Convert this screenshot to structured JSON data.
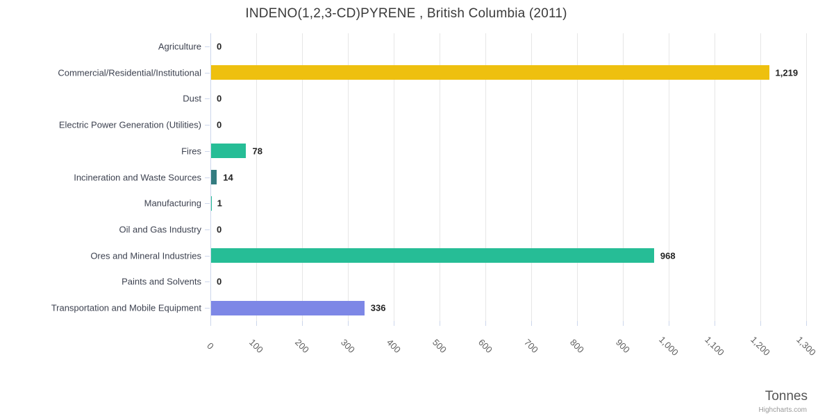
{
  "chart": {
    "title": "INDENO(1,2,3-CD)PYRENE , British Columbia (2011)",
    "axis_title": "Tonnes",
    "credit": "Highcharts.com"
  },
  "chart_data": {
    "type": "bar",
    "orientation": "horizontal",
    "title": "INDENO(1,2,3-CD)PYRENE , British Columbia (2011)",
    "xlabel": "Tonnes",
    "ylabel": "",
    "xlim": [
      0,
      1300
    ],
    "x_tick_interval": 100,
    "x_tick_labels": [
      "0",
      "100",
      "200",
      "300",
      "400",
      "500",
      "600",
      "700",
      "800",
      "900",
      "1,000",
      "1,100",
      "1,200",
      "1,300"
    ],
    "grid": true,
    "legend": false,
    "categories": [
      "Agriculture",
      "Commercial/Residential/Institutional",
      "Dust",
      "Electric Power Generation (Utilities)",
      "Fires",
      "Incineration and Waste Sources",
      "Manufacturing",
      "Oil and Gas Industry",
      "Ores and Mineral Industries",
      "Paints and Solvents",
      "Transportation and Mobile Equipment"
    ],
    "values": [
      0,
      1219,
      0,
      0,
      78,
      14,
      1,
      0,
      968,
      0,
      336
    ],
    "data_labels": [
      "0",
      "1,219",
      "0",
      "0",
      "78",
      "14",
      "1",
      "0",
      "968",
      "0",
      "336"
    ],
    "bar_colors": [
      "#26BD96",
      "#EEC00F",
      "#26BD96",
      "#26BD96",
      "#26BD96",
      "#337C80",
      "#26BD96",
      "#26BD96",
      "#26BD96",
      "#26BD96",
      "#7D87E6"
    ]
  },
  "style": {
    "grid_color": "#E6E6E6",
    "axis_line_color": "#CCD6EB",
    "title_color": "#3A3A3A",
    "category_label_color": "#3D4250",
    "value_label_color": "#222222",
    "tick_label_color": "#606060",
    "axis_title_color": "#555555",
    "credit_color": "#999999"
  }
}
